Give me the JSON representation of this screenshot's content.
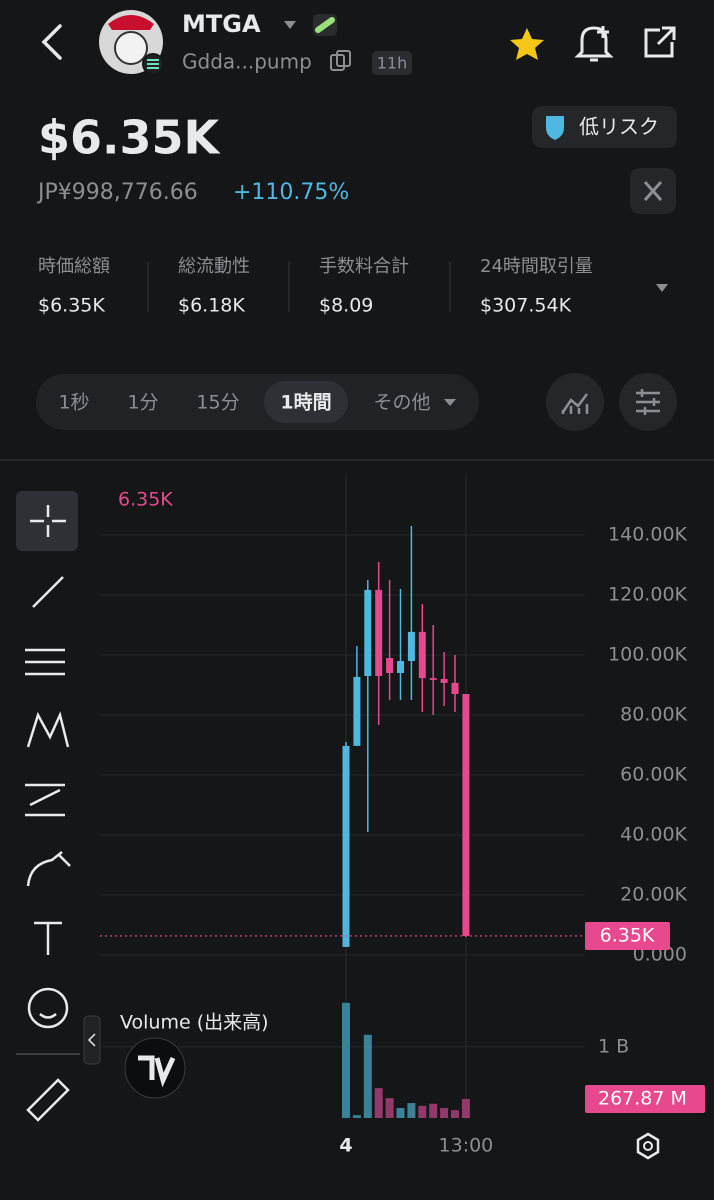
{
  "header": {
    "symbol": "MTGA",
    "address": "Gdda...pump",
    "age": "11h"
  },
  "price": {
    "usd": "$6.35K",
    "jpy": "JP¥998,776.66",
    "change": "+110.75%",
    "risk": "低リスク"
  },
  "stats": [
    {
      "label": "時価総額",
      "value": "$6.35K"
    },
    {
      "label": "総流動性",
      "value": "$6.18K"
    },
    {
      "label": "手数料合計",
      "value": "$8.09"
    },
    {
      "label": "24時間取引量",
      "value": "$307.54K"
    }
  ],
  "timeframes": [
    "1秒",
    "1分",
    "15分",
    "1時間",
    "その他"
  ],
  "chart_data": [
    {
      "type": "candlestick",
      "categories": [
        "4",
        null,
        null,
        null,
        null,
        null,
        null,
        null,
        null,
        null,
        null,
        "13:00"
      ],
      "open": [
        2700,
        69700,
        93000,
        121700,
        99000,
        94000,
        98000,
        107700,
        92300,
        92000,
        90700,
        87000
      ],
      "high": [
        71000,
        103000,
        125000,
        131000,
        125000,
        122000,
        143000,
        117000,
        110000,
        101000,
        100000,
        87000
      ],
      "low": [
        2700,
        69700,
        41000,
        76700,
        85000,
        85000,
        85000,
        81000,
        80000,
        83000,
        81000,
        6000
      ],
      "close": [
        69700,
        92700,
        121700,
        93000,
        94000,
        98000,
        107700,
        92300,
        91700,
        90700,
        87000,
        6350
      ],
      "up_color": "#4fb8e0",
      "down_color": "#e8488d",
      "ylim": [
        -10000,
        158333
      ],
      "yticks": [
        {
          "value": 0,
          "label": "0.000"
        },
        {
          "value": 20000,
          "label": "20.00K"
        },
        {
          "value": 40000,
          "label": "40.00K"
        },
        {
          "value": 60000,
          "label": "60.00K"
        },
        {
          "value": 80000,
          "label": "80.00K"
        },
        {
          "value": 100000,
          "label": "100.00K"
        },
        {
          "value": 120000,
          "label": "120.00K"
        },
        {
          "value": 140000,
          "label": "140.00K"
        }
      ],
      "grid": true,
      "last": {
        "value": 6350,
        "label": "6.35K"
      }
    },
    {
      "type": "bar",
      "title": "Volume (出来高)",
      "values": [
        1620000000,
        40000000,
        1170000000,
        420000000,
        280000000,
        140000000,
        210000000,
        170000000,
        200000000,
        140000000,
        110000000,
        267870000
      ],
      "up_color": "#3b8296",
      "down_color": "#93386a",
      "ylim": [
        0,
        1800000000
      ],
      "yticks": [
        {
          "value": 1000000000,
          "label": "1 B"
        }
      ],
      "last": {
        "value": 267870000,
        "label": "267.87 M"
      }
    }
  ]
}
